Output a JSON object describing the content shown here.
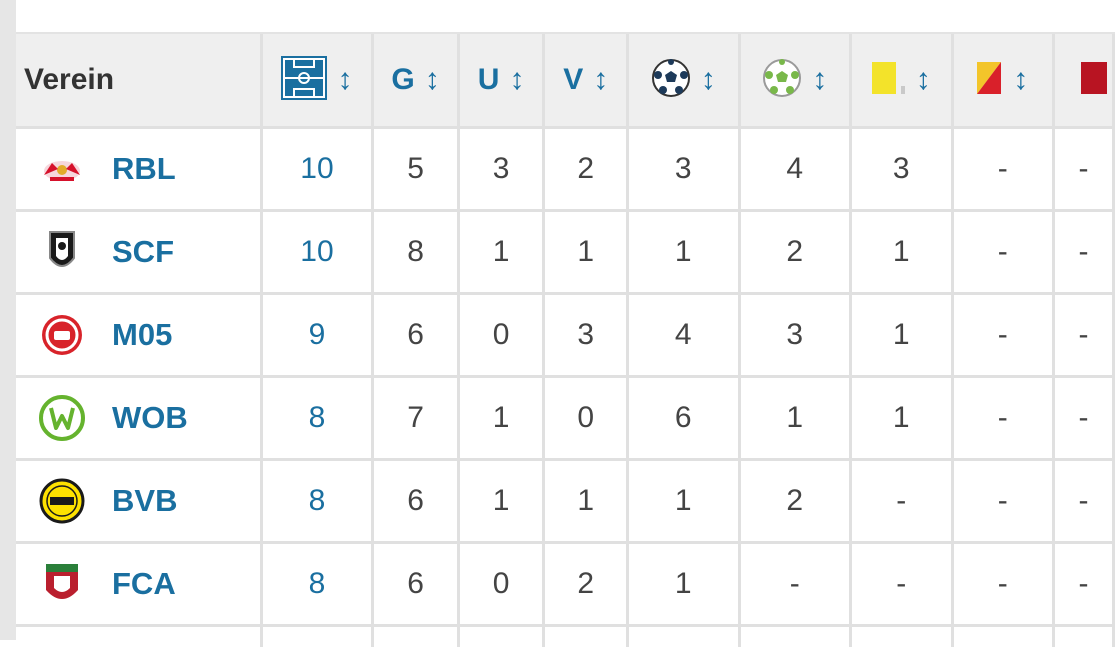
{
  "table": {
    "header": {
      "verein": "Verein",
      "games": "G",
      "wins": "U",
      "losses": "V",
      "sort_symbol": "↕"
    },
    "icons": {
      "points": "pitch-icon",
      "goals": "soccer-ball-icon",
      "assists": "green-ball-icon",
      "yellow": "yellow-card-icon",
      "yellow_red": "yellow-red-card-icon",
      "red": "red-card-icon"
    },
    "rows": [
      {
        "abbr": "RBL",
        "pts": "10",
        "g": "5",
        "u": "3",
        "v": "2",
        "goals": "3",
        "assists": "4",
        "yellow": "3",
        "yellow_red": "-",
        "red": "-",
        "logo": "rbl-logo-icon"
      },
      {
        "abbr": "SCF",
        "pts": "10",
        "g": "8",
        "u": "1",
        "v": "1",
        "goals": "1",
        "assists": "2",
        "yellow": "1",
        "yellow_red": "-",
        "red": "-",
        "logo": "scf-logo-icon"
      },
      {
        "abbr": "M05",
        "pts": "9",
        "g": "6",
        "u": "0",
        "v": "3",
        "goals": "4",
        "assists": "3",
        "yellow": "1",
        "yellow_red": "-",
        "red": "-",
        "logo": "m05-logo-icon"
      },
      {
        "abbr": "WOB",
        "pts": "8",
        "g": "7",
        "u": "1",
        "v": "0",
        "goals": "6",
        "assists": "1",
        "yellow": "1",
        "yellow_red": "-",
        "red": "-",
        "logo": "wob-logo-icon"
      },
      {
        "abbr": "BVB",
        "pts": "8",
        "g": "6",
        "u": "1",
        "v": "1",
        "goals": "1",
        "assists": "2",
        "yellow": "-",
        "yellow_red": "-",
        "red": "-",
        "logo": "bvb-logo-icon"
      },
      {
        "abbr": "FCA",
        "pts": "8",
        "g": "6",
        "u": "0",
        "v": "2",
        "goals": "1",
        "assists": "-",
        "yellow": "-",
        "yellow_red": "-",
        "red": "-",
        "logo": "fca-logo-icon"
      }
    ]
  },
  "colors": {
    "link_blue": "#1a6fa0",
    "header_bg": "#efefef",
    "grid_line": "#e0e0e0",
    "text": "#444444"
  }
}
